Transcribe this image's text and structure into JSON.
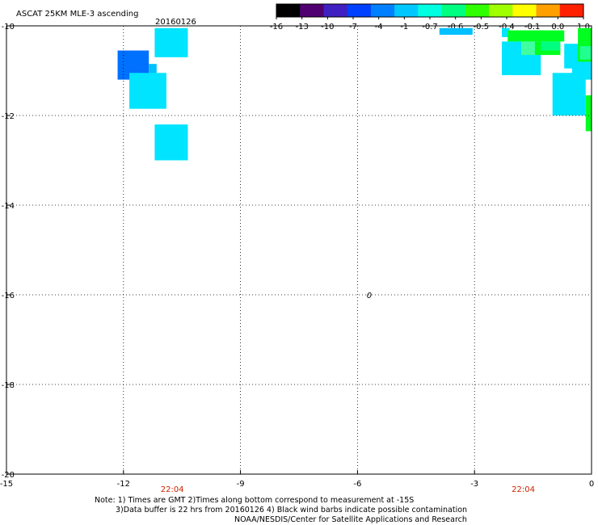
{
  "chart_data": {
    "type": "heatmap",
    "title": "ASCAT 25KM MLE-3 ascending",
    "date": "20160126",
    "xlim": [
      -15,
      0
    ],
    "ylim": [
      -20,
      -10
    ],
    "x_ticks": [
      -15,
      -12,
      -9,
      -6,
      -3,
      0
    ],
    "x_tick_labels": [
      "-15",
      "-12",
      "-9",
      "-6",
      "-3",
      "0"
    ],
    "y_ticks": [
      -10,
      -12,
      -14,
      -16,
      -18,
      -20
    ],
    "y_tick_labels": [
      "-10",
      "-12",
      "-14",
      "-16",
      "-18",
      "-20"
    ],
    "grid": true,
    "colorbar": {
      "position": "top-right",
      "labels": [
        "-16",
        "-13",
        "-10",
        "-7",
        "-4",
        "-1",
        "-0.7",
        "-0.6",
        "-0.5",
        "-0.4",
        "-0.1",
        "0.0",
        "1.0"
      ],
      "colors": [
        "#000000",
        "#500070",
        "#4020c0",
        "#0040ff",
        "#0080ff",
        "#00c8ff",
        "#00ffe0",
        "#00ff80",
        "#30ff00",
        "#a0ff00",
        "#ffff00",
        "#ffa000",
        "#ff2000"
      ]
    },
    "cells": [
      {
        "x0": -11.2,
        "x1": -10.35,
        "y0": -10.7,
        "y1": -10.05,
        "value": -1,
        "color": "#00e4ff"
      },
      {
        "x0": -12.15,
        "x1": -11.35,
        "y0": -11.2,
        "y1": -10.55,
        "value": -7,
        "color": "#0070ff"
      },
      {
        "x0": -11.35,
        "x1": -11.15,
        "y0": -11.2,
        "y1": -10.85,
        "value": -4,
        "color": "#00c0ff"
      },
      {
        "x0": -11.85,
        "x1": -10.9,
        "y0": -11.85,
        "y1": -11.05,
        "value": -1,
        "color": "#00e4ff"
      },
      {
        "x0": -11.2,
        "x1": -10.35,
        "y0": -13.0,
        "y1": -12.2,
        "value": -1,
        "color": "#00e4ff"
      },
      {
        "x0": -3.9,
        "x1": -3.05,
        "y0": -10.2,
        "y1": -10.05,
        "value": -4,
        "color": "#00c0ff"
      },
      {
        "x0": -2.3,
        "x1": -1.3,
        "y0": -11.1,
        "y1": -10.35,
        "value": -1,
        "color": "#00e4ff"
      },
      {
        "x0": -2.3,
        "x1": -2.1,
        "y0": -10.25,
        "y1": -10.05,
        "value": -1,
        "color": "#00e4ff"
      },
      {
        "x0": -2.15,
        "x1": -0.7,
        "y0": -10.35,
        "y1": -10.1,
        "value": -0.5,
        "color": "#00ff20"
      },
      {
        "x0": -1.75,
        "x1": -0.8,
        "y0": -10.65,
        "y1": -10.35,
        "value": -0.5,
        "color": "#00ff20"
      },
      {
        "x0": -1.3,
        "x1": -0.8,
        "y0": -10.55,
        "y1": -10.35,
        "value": -0.6,
        "color": "#00ff80"
      },
      {
        "x0": -1.8,
        "x1": -1.45,
        "y0": -10.65,
        "y1": -10.35,
        "value": -0.6,
        "color": "#40ffa0"
      },
      {
        "x0": -0.7,
        "x1": -0.2,
        "y0": -10.95,
        "y1": -10.4,
        "value": -1,
        "color": "#00e4ff"
      },
      {
        "x0": -0.5,
        "x1": 0,
        "y0": -11.2,
        "y1": -10.45,
        "value": -1,
        "color": "#00e4ff"
      },
      {
        "x0": -0.35,
        "x1": 0,
        "y0": -10.8,
        "y1": -10.05,
        "value": -0.5,
        "color": "#00ff20"
      },
      {
        "x0": -0.3,
        "x1": 0,
        "y0": -10.75,
        "y1": -10.45,
        "value": -0.6,
        "color": "#20ff90"
      },
      {
        "x0": -1.0,
        "x1": -0.15,
        "y0": -12.0,
        "y1": -11.05,
        "value": -1,
        "color": "#00e4ff"
      },
      {
        "x0": -0.15,
        "x1": 0,
        "y0": -12.35,
        "y1": -11.55,
        "value": -0.5,
        "color": "#00ff20"
      }
    ],
    "annotations": [
      {
        "text": "22:04",
        "x": -10.75,
        "position": "below-axis"
      },
      {
        "text": "22:04",
        "x": -1.75,
        "position": "below-axis"
      },
      {
        "text": "0",
        "x": -5.7,
        "y": -16.0,
        "position": "inline"
      }
    ]
  },
  "notes": {
    "line1": "Note: 1) Times are GMT 2)Times along bottom correspond to measurement at -15S",
    "line2": "3)Data buffer is 22 hrs from 20160126 4) Black wind barbs indicate possible contamination",
    "line3": "NOAA/NESDIS/Center for Satellite Applications and Research"
  }
}
